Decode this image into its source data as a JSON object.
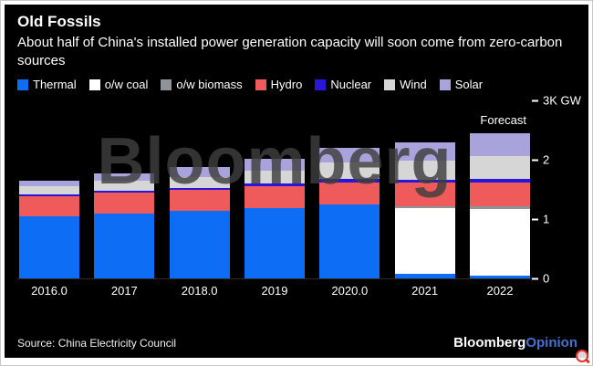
{
  "header": {
    "title": "Old Fossils",
    "subtitle": "About half of China's installed power generation capacity will soon come from zero-carbon sources"
  },
  "watermark": "Bloomberg",
  "chart_data": {
    "type": "bar",
    "subtype": "stacked",
    "title": "Old Fossils",
    "categories": [
      "2016.0",
      "2017",
      "2018.0",
      "2019",
      "2020.0",
      "2021",
      "2022"
    ],
    "series": [
      {
        "name": "Thermal",
        "color": "#0d6ef5",
        "values": [
          1.05,
          1.1,
          1.14,
          1.19,
          1.25,
          0.08,
          0.05
        ]
      },
      {
        "name": "o/w coal",
        "color": "#ffffff",
        "values": [
          0,
          0,
          0,
          0,
          0,
          1.1,
          1.12
        ]
      },
      {
        "name": "o/w biomass",
        "color": "#8f9499",
        "values": [
          0,
          0,
          0,
          0,
          0,
          0.04,
          0.05
        ]
      },
      {
        "name": "Hydro",
        "color": "#ef5a5a",
        "values": [
          0.33,
          0.34,
          0.35,
          0.36,
          0.37,
          0.39,
          0.4
        ]
      },
      {
        "name": "Nuclear",
        "color": "#2a16d8",
        "values": [
          0.03,
          0.04,
          0.04,
          0.05,
          0.05,
          0.05,
          0.06
        ]
      },
      {
        "name": "Wind",
        "color": "#d6d6d6",
        "values": [
          0.15,
          0.16,
          0.18,
          0.21,
          0.28,
          0.33,
          0.38
        ]
      },
      {
        "name": "Solar",
        "color": "#a9a3dc",
        "values": [
          0.08,
          0.13,
          0.17,
          0.2,
          0.25,
          0.31,
          0.38
        ]
      }
    ],
    "ylim": [
      0,
      3
    ],
    "yticks": [
      {
        "value": 3,
        "label": "3K GW"
      },
      {
        "value": 2,
        "label": "2"
      },
      {
        "value": 1,
        "label": "1"
      },
      {
        "value": 0,
        "label": "0"
      }
    ],
    "annotation": "Forecast",
    "legend_position": "top",
    "grid": false
  },
  "footer": {
    "source": "Source: China Electricity Council",
    "brand": "Bloomberg",
    "brand_suffix": "Opinion"
  },
  "icons": {
    "zoom": "magnifier-zoom-icon"
  },
  "colors": {
    "background": "#000000",
    "text": "#ffffff",
    "accent_blue": "#0d6ef5",
    "opinion_blue": "#4472d4",
    "zoom_red": "#e8322a"
  }
}
